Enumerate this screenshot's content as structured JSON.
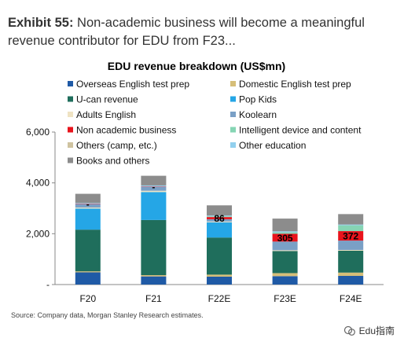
{
  "header": {
    "exhibit_label": "Exhibit 55:",
    "exhibit_text": "Non-academic business will become a meaningful revenue contributor for EDU from F23..."
  },
  "footer": {
    "source": "Source: Company data, Morgan Stanley Research estimates.",
    "watermark": "Edu指南"
  },
  "chart_data": {
    "type": "bar",
    "stacked": true,
    "title": "EDU revenue breakdown (US$mn)",
    "xlabel": "",
    "ylabel": "",
    "ylim": [
      0,
      6000
    ],
    "yticks": [
      0,
      2000,
      4000,
      6000
    ],
    "ytick_labels": [
      "-",
      "2,000",
      "4,000",
      "6,000"
    ],
    "categories": [
      "F20",
      "F21",
      "F22E",
      "F23E",
      "F24E"
    ],
    "legend_position": "top-left",
    "grid": false,
    "series": [
      {
        "name": "Overseas English test prep",
        "color": "#1f5aa6",
        "values": [
          480,
          320,
          310,
          330,
          340
        ]
      },
      {
        "name": "Domestic English test prep",
        "color": "#d6be78",
        "values": [
          40,
          50,
          80,
          120,
          130
        ]
      },
      {
        "name": "U-can revenue",
        "color": "#1f6e5c",
        "values": [
          1640,
          2170,
          1460,
          870,
          860
        ]
      },
      {
        "name": "Pop Kids",
        "color": "#25a6e6",
        "values": [
          830,
          1100,
          600,
          0,
          0
        ]
      },
      {
        "name": "Adults English",
        "color": "#efe3c3",
        "values": [
          40,
          50,
          30,
          30,
          30
        ]
      },
      {
        "name": "Koolearn",
        "color": "#7aa0c6",
        "values": [
          130,
          160,
          90,
          340,
          370
        ]
      },
      {
        "name": "Non academic business",
        "color": "#e8141c",
        "values": [
          10,
          10,
          86,
          305,
          372
        ]
      },
      {
        "name": "Intelligent device and content",
        "color": "#86d5b4",
        "values": [
          0,
          0,
          30,
          60,
          230
        ]
      },
      {
        "name": "Others (camp, etc.)",
        "color": "#cfc3a0",
        "values": [
          0,
          0,
          0,
          0,
          0
        ]
      },
      {
        "name": "Other education",
        "color": "#92d0ee",
        "values": [
          40,
          40,
          30,
          40,
          30
        ]
      },
      {
        "name": "Books and others",
        "color": "#8c8c8c",
        "values": [
          360,
          380,
          400,
          500,
          410
        ]
      }
    ],
    "data_labels": [
      {
        "category": "F20",
        "series": "Non academic business",
        "text": "-"
      },
      {
        "category": "F21",
        "series": "Non academic business",
        "text": "-"
      },
      {
        "category": "F22E",
        "series": "Non academic business",
        "text": "86"
      },
      {
        "category": "F23E",
        "series": "Non academic business",
        "text": "305"
      },
      {
        "category": "F24E",
        "series": "Non academic business",
        "text": "372"
      }
    ]
  }
}
